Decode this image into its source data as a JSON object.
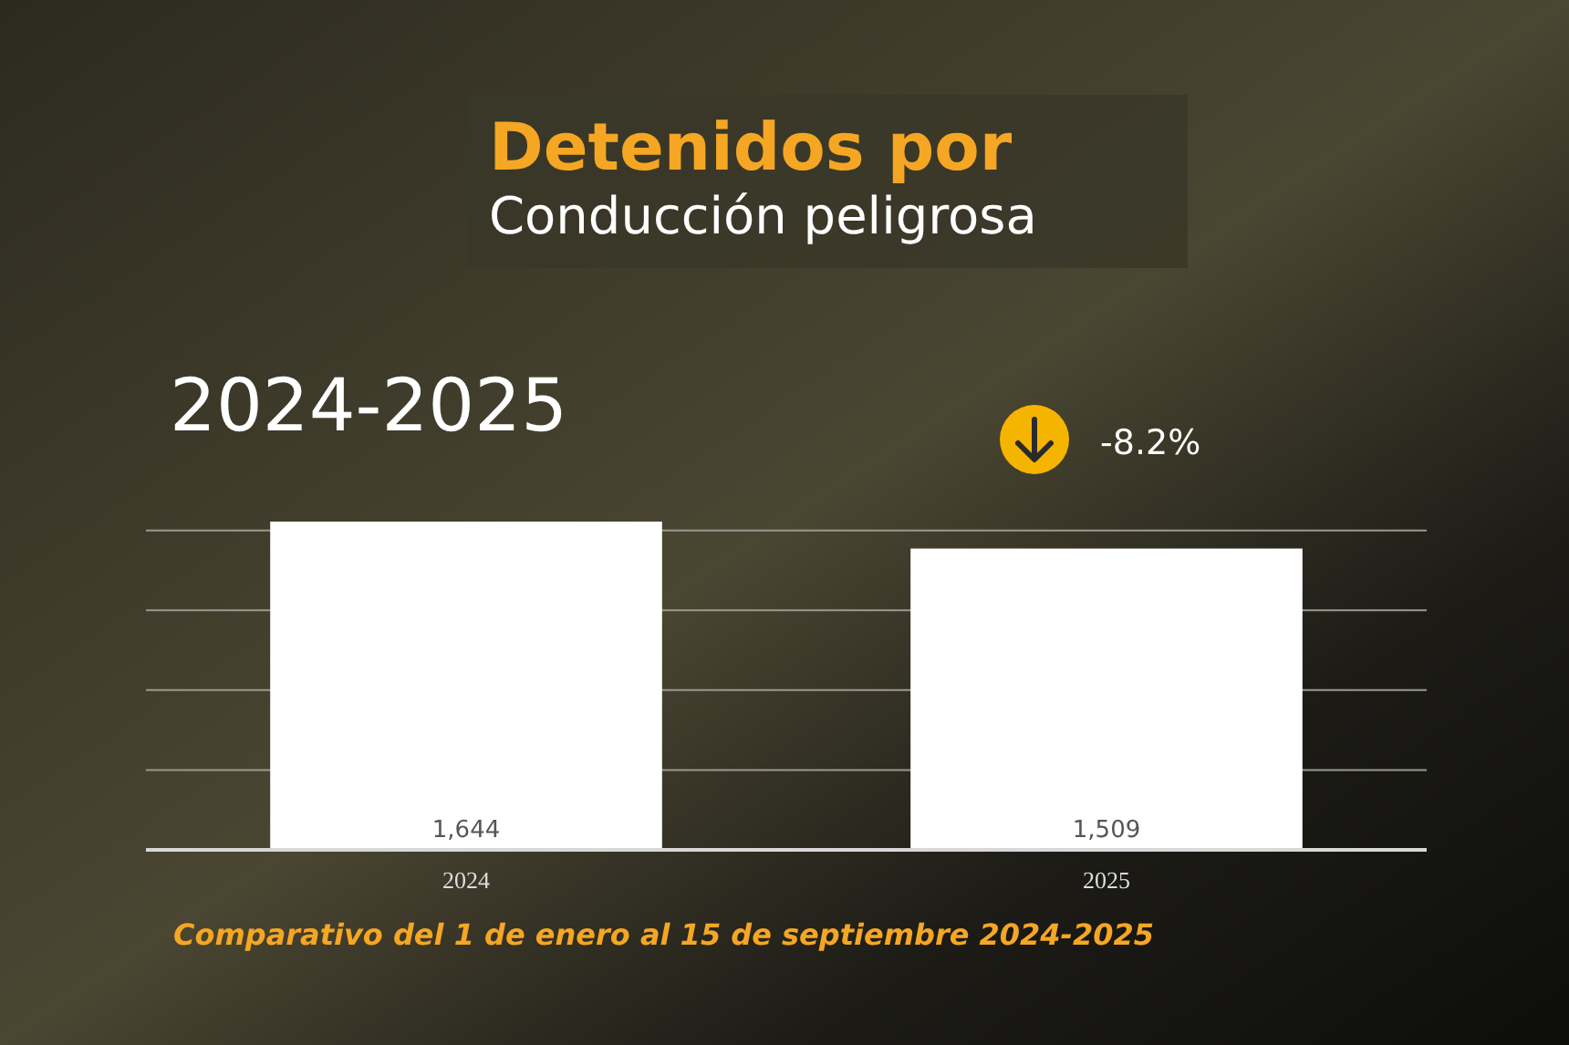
{
  "chart_data": {
    "type": "bar",
    "title": "Detenidos por",
    "subtitle": "Conducción peligrosa",
    "categories": [
      "2024",
      "2025"
    ],
    "values": [
      1644,
      1509
    ],
    "value_labels": [
      "1,644",
      "1,509"
    ],
    "color": "#ffffff",
    "yticks": [
      {
        "value": 0,
        "label": null
      },
      {
        "value": 400,
        "label": null
      },
      {
        "value": 800,
        "label": null
      },
      {
        "value": 1200,
        "label": null
      },
      {
        "value": 1600,
        "label": null
      }
    ],
    "grid": "y",
    "tick_labels": "x",
    "annotations": [
      "2024-2025",
      "-8.2%",
      "Comparativo del 1 de enero al 15 de septiembre 2024-2025"
    ]
  }
}
